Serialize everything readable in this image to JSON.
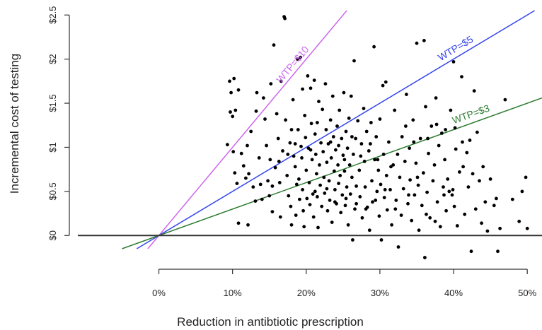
{
  "chart_data": {
    "type": "scatter",
    "xlabel": "Reduction in antibtiotic prescription",
    "ylabel": "Incremental cost of testing",
    "xlim": [
      -0.11,
      0.52
    ],
    "ylim": [
      -0.15,
      2.55
    ],
    "x_ticks": [
      {
        "value": 0.0,
        "label": "0%"
      },
      {
        "value": 0.1,
        "label": "10%"
      },
      {
        "value": 0.2,
        "label": "20%"
      },
      {
        "value": 0.3,
        "label": "30%"
      },
      {
        "value": 0.4,
        "label": "40%"
      },
      {
        "value": 0.5,
        "label": "50%"
      }
    ],
    "y_ticks": [
      {
        "value": 0,
        "label": "$0"
      },
      {
        "value": 0.5,
        "label": "$0.5"
      },
      {
        "value": 1,
        "label": "$1"
      },
      {
        "value": 1.5,
        "label": "$1.5"
      },
      {
        "value": 2,
        "label": "$2"
      },
      {
        "value": 2.5,
        "label": "$2.5"
      }
    ],
    "reference_lines": [
      {
        "label": "WTP=$10",
        "slope": 10,
        "color": "#cc66ee"
      },
      {
        "label": "WTP=$5",
        "slope": 5,
        "color": "#3344ee"
      },
      {
        "label": "WTP=$3",
        "slope": 3,
        "color": "#2e7d32"
      }
    ],
    "zero_line": true,
    "point_color": "#000000",
    "points": [
      [
        0.093,
        1.03
      ],
      [
        0.096,
        1.75
      ],
      [
        0.098,
        1.62
      ],
      [
        0.097,
        1.4
      ],
      [
        0.1,
        1.35
      ],
      [
        0.102,
        1.78
      ],
      [
        0.104,
        1.42
      ],
      [
        0.101,
        0.95
      ],
      [
        0.103,
        0.71
      ],
      [
        0.106,
        0.59
      ],
      [
        0.108,
        1.65
      ],
      [
        0.108,
        0.14
      ],
      [
        0.112,
        0.93
      ],
      [
        0.115,
        0.79
      ],
      [
        0.118,
        0.65
      ],
      [
        0.12,
        1.02
      ],
      [
        0.122,
        0.7
      ],
      [
        0.121,
        0.12
      ],
      [
        0.125,
        1.18
      ],
      [
        0.128,
        0.55
      ],
      [
        0.131,
        0.39
      ],
      [
        0.133,
        1.62
      ],
      [
        0.132,
        1.41
      ],
      [
        0.136,
        0.88
      ],
      [
        0.138,
        0.58
      ],
      [
        0.14,
        0.41
      ],
      [
        0.142,
        1.56
      ],
      [
        0.144,
        1.32
      ],
      [
        0.146,
        1.02
      ],
      [
        0.148,
        0.62
      ],
      [
        0.15,
        0.45
      ],
      [
        0.152,
        1.72
      ],
      [
        0.151,
        0.86
      ],
      [
        0.154,
        0.27
      ],
      [
        0.156,
        2.16
      ],
      [
        0.158,
        0.77
      ],
      [
        0.16,
        1.38
      ],
      [
        0.162,
        1.1
      ],
      [
        0.164,
        0.6
      ],
      [
        0.165,
        0.21
      ],
      [
        0.166,
        1.75
      ],
      [
        0.168,
        0.96
      ],
      [
        0.17,
        2.48
      ],
      [
        0.171,
        2.46
      ],
      [
        0.172,
        1.31
      ],
      [
        0.174,
        0.68
      ],
      [
        0.176,
        0.45
      ],
      [
        0.178,
        1.05
      ],
      [
        0.179,
        0.33
      ],
      [
        0.18,
        0.12
      ],
      [
        0.182,
        1.54
      ],
      [
        0.183,
        0.9
      ],
      [
        0.185,
        0.78
      ],
      [
        0.186,
        0.23
      ],
      [
        0.188,
        2.0
      ],
      [
        0.189,
        1.2
      ],
      [
        0.19,
        0.64
      ],
      [
        0.191,
        0.41
      ],
      [
        0.192,
        2.02
      ],
      [
        0.193,
        1.01
      ],
      [
        0.194,
        0.88
      ],
      [
        0.195,
        0.52
      ],
      [
        0.196,
        0.28
      ],
      [
        0.197,
        0.1
      ],
      [
        0.198,
        1.36
      ],
      [
        0.199,
        1.11
      ],
      [
        0.2,
        0.74
      ],
      [
        0.202,
        1.81
      ],
      [
        0.203,
        0.99
      ],
      [
        0.204,
        0.6
      ],
      [
        0.205,
        0.35
      ],
      [
        0.206,
        1.67
      ],
      [
        0.207,
        1.27
      ],
      [
        0.208,
        0.86
      ],
      [
        0.209,
        0.47
      ],
      [
        0.21,
        0.21
      ],
      [
        0.211,
        1.76
      ],
      [
        0.212,
        1.15
      ],
      [
        0.213,
        0.92
      ],
      [
        0.214,
        0.7
      ],
      [
        0.215,
        0.44
      ],
      [
        0.216,
        0.09
      ],
      [
        0.217,
        1.52
      ],
      [
        0.218,
        0.8
      ],
      [
        0.219,
        0.57
      ],
      [
        0.22,
        1.05
      ],
      [
        0.221,
        0.33
      ],
      [
        0.222,
        1.43
      ],
      [
        0.223,
        0.95
      ],
      [
        0.224,
        0.66
      ],
      [
        0.225,
        0.48
      ],
      [
        0.226,
        1.72
      ],
      [
        0.227,
        1.2
      ],
      [
        0.228,
        0.83
      ],
      [
        0.229,
        0.28
      ],
      [
        0.23,
        1.04
      ],
      [
        0.231,
        0.62
      ],
      [
        0.232,
        0.4
      ],
      [
        0.233,
        1.31
      ],
      [
        0.234,
        0.88
      ],
      [
        0.235,
        0.15
      ],
      [
        0.236,
        1.58
      ],
      [
        0.237,
        1.12
      ],
      [
        0.238,
        0.73
      ],
      [
        0.239,
        0.52
      ],
      [
        0.24,
        0.97
      ],
      [
        0.241,
        0.36
      ],
      [
        0.242,
        1.24
      ],
      [
        0.243,
        0.8
      ],
      [
        0.244,
        0.59
      ],
      [
        0.245,
        1.42
      ],
      [
        0.246,
        0.68
      ],
      [
        0.247,
        0.26
      ],
      [
        0.248,
        1.1
      ],
      [
        0.249,
        0.46
      ],
      [
        0.25,
        0.91
      ],
      [
        0.251,
        1.62
      ],
      [
        0.252,
        0.73
      ],
      [
        0.253,
        0.34
      ],
      [
        0.254,
        1.18
      ],
      [
        0.255,
        0.55
      ],
      [
        0.256,
        0.99
      ],
      [
        0.257,
        0.12
      ],
      [
        0.258,
        1.33
      ],
      [
        0.259,
        0.8
      ],
      [
        0.26,
        0.47
      ],
      [
        0.261,
        1.58
      ],
      [
        0.262,
        0.66
      ],
      [
        0.263,
        -0.05
      ],
      [
        0.264,
        0.92
      ],
      [
        0.265,
        1.98
      ],
      [
        0.266,
        0.3
      ],
      [
        0.267,
        1.1
      ],
      [
        0.268,
        0.56
      ],
      [
        0.27,
        1.3
      ],
      [
        0.272,
        0.74
      ],
      [
        0.273,
        0.44
      ],
      [
        0.275,
        1.04
      ],
      [
        0.276,
        0.2
      ],
      [
        0.278,
        1.44
      ],
      [
        0.279,
        0.84
      ],
      [
        0.28,
        0.55
      ],
      [
        0.282,
        1.18
      ],
      [
        0.283,
        0.32
      ],
      [
        0.285,
        0.96
      ],
      [
        0.286,
        0.06
      ],
      [
        0.288,
        1.28
      ],
      [
        0.289,
        0.62
      ],
      [
        0.29,
        0.38
      ],
      [
        0.292,
        2.14
      ],
      [
        0.293,
        0.86
      ],
      [
        0.295,
        1.12
      ],
      [
        0.296,
        0.5
      ],
      [
        0.298,
        0.74
      ],
      [
        0.299,
        0.22
      ],
      [
        0.3,
        1.32
      ],
      [
        0.301,
        0.58
      ],
      [
        0.302,
        -0.05
      ],
      [
        0.304,
        1.7
      ],
      [
        0.305,
        0.92
      ],
      [
        0.306,
        0.43
      ],
      [
        0.308,
        1.74
      ],
      [
        0.309,
        0.68
      ],
      [
        0.31,
        0.29
      ],
      [
        0.312,
        1.06
      ],
      [
        0.314,
        0.52
      ],
      [
        0.316,
        0.12
      ],
      [
        0.318,
        0.8
      ],
      [
        0.32,
        1.42
      ],
      [
        0.322,
        0.4
      ],
      [
        0.324,
        0.92
      ],
      [
        0.325,
        -0.13
      ],
      [
        0.327,
        0.66
      ],
      [
        0.329,
        0.23
      ],
      [
        0.33,
        1.12
      ],
      [
        0.332,
        0.53
      ],
      [
        0.334,
        0.84
      ],
      [
        0.336,
        1.6
      ],
      [
        0.338,
        0.36
      ],
      [
        0.34,
        0.99
      ],
      [
        0.341,
        0.63
      ],
      [
        0.343,
        0.17
      ],
      [
        0.345,
        1.31
      ],
      [
        0.347,
        0.46
      ],
      [
        0.349,
        0.82
      ],
      [
        0.35,
        2.18
      ],
      [
        0.352,
        0.57
      ],
      [
        0.353,
        0.06
      ],
      [
        0.355,
        1.1
      ],
      [
        0.357,
        0.34
      ],
      [
        0.359,
        0.71
      ],
      [
        0.36,
        2.21
      ],
      [
        0.361,
        -0.25
      ],
      [
        0.362,
        1.46
      ],
      [
        0.364,
        0.49
      ],
      [
        0.366,
        0.93
      ],
      [
        0.368,
        0.2
      ],
      [
        0.37,
        1.24
      ],
      [
        0.372,
        0.62
      ],
      [
        0.374,
        0.8
      ],
      [
        0.376,
        1.56
      ],
      [
        0.378,
        0.38
      ],
      [
        0.38,
        1.02
      ],
      [
        0.382,
        0.1
      ],
      [
        0.384,
        1.16
      ],
      [
        0.386,
        0.55
      ],
      [
        0.388,
        0.86
      ],
      [
        0.39,
        0.28
      ],
      [
        0.392,
        0.64
      ],
      [
        0.394,
        0.5
      ],
      [
        0.396,
        1.42
      ],
      [
        0.398,
        0.46
      ],
      [
        0.4,
        1.97
      ],
      [
        0.401,
        0.33
      ],
      [
        0.403,
        0.98
      ],
      [
        0.405,
        0.11
      ],
      [
        0.408,
        0.72
      ],
      [
        0.411,
        1.8
      ],
      [
        0.413,
        0.78
      ],
      [
        0.415,
        0.24
      ],
      [
        0.418,
        0.94
      ],
      [
        0.42,
        0.55
      ],
      [
        0.422,
        1.08
      ],
      [
        0.424,
        -0.18
      ],
      [
        0.426,
        0.7
      ],
      [
        0.428,
        1.64
      ],
      [
        0.43,
        0.3
      ],
      [
        0.432,
        1.17
      ],
      [
        0.435,
        0.62
      ],
      [
        0.438,
        0.14
      ],
      [
        0.44,
        0.78
      ],
      [
        0.443,
        0.38
      ],
      [
        0.446,
        0.05
      ],
      [
        0.45,
        0.64
      ],
      [
        0.455,
        0.34
      ],
      [
        0.458,
        0.42
      ],
      [
        0.46,
        -0.18
      ],
      [
        0.463,
        0.08
      ],
      [
        0.47,
        1.54
      ],
      [
        0.48,
        0.41
      ],
      [
        0.489,
        0.16
      ],
      [
        0.493,
        0.5
      ],
      [
        0.498,
        0.66
      ],
      [
        0.5,
        0.08
      ],
      [
        0.18,
        1.2
      ],
      [
        0.185,
        1.04
      ],
      [
        0.195,
        1.66
      ],
      [
        0.206,
        0.97
      ],
      [
        0.215,
        1.28
      ],
      [
        0.233,
        1.06
      ],
      [
        0.244,
        1.02
      ],
      [
        0.252,
        0.86
      ],
      [
        0.262,
        1.12
      ],
      [
        0.274,
        0.9
      ],
      [
        0.287,
        1.04
      ],
      [
        0.297,
        0.86
      ],
      [
        0.315,
        0.78
      ],
      [
        0.335,
        1.24
      ],
      [
        0.346,
        1.06
      ],
      [
        0.365,
        1.1
      ],
      [
        0.377,
        1.26
      ],
      [
        0.389,
        1.2
      ],
      [
        0.402,
        1.22
      ],
      [
        0.412,
        1.06
      ],
      [
        0.154,
        0.56
      ],
      [
        0.163,
        0.84
      ],
      [
        0.175,
        0.92
      ],
      [
        0.187,
        0.58
      ],
      [
        0.201,
        0.42
      ],
      [
        0.212,
        0.5
      ],
      [
        0.228,
        0.53
      ],
      [
        0.239,
        0.38
      ],
      [
        0.254,
        0.42
      ],
      [
        0.268,
        0.36
      ],
      [
        0.281,
        0.3
      ],
      [
        0.294,
        0.4
      ],
      [
        0.307,
        0.52
      ],
      [
        0.321,
        0.3
      ],
      [
        0.339,
        0.46
      ],
      [
        0.351,
        0.66
      ],
      [
        0.363,
        0.24
      ],
      [
        0.375,
        0.16
      ],
      [
        0.387,
        0.46
      ],
      [
        0.399,
        0.52
      ]
    ]
  }
}
